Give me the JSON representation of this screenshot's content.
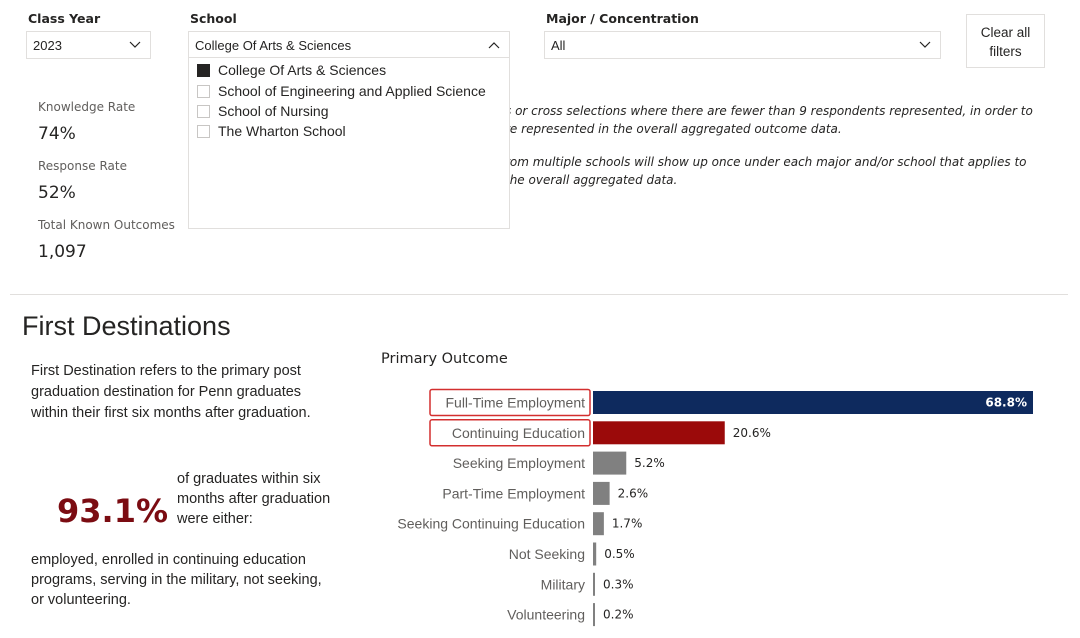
{
  "filters": {
    "class_year": {
      "label": "Class Year",
      "value": "2023"
    },
    "school": {
      "label": "School",
      "value": "College Of Arts & Sciences",
      "options": [
        {
          "label": "College Of Arts & Sciences",
          "checked": true
        },
        {
          "label": "School of Engineering and Applied Science",
          "checked": false
        },
        {
          "label": "School of Nursing",
          "checked": false
        },
        {
          "label": "The Wharton School",
          "checked": false
        }
      ]
    },
    "major": {
      "label": "Major / Concentration",
      "value": "All"
    },
    "clear_all": {
      "line1": "Clear all",
      "line2": "filters"
    }
  },
  "kpis": [
    {
      "label": "Knowledge Rate",
      "value": "74%"
    },
    {
      "label": "Response Rate",
      "value": "52%"
    },
    {
      "label": "Total Known Outcomes",
      "value": "1,097"
    }
  ],
  "notes": {
    "line1": "s or cross selections where there are fewer than 9 respondents represented, in order to",
    "line2": "re represented in the overall aggregated outcome data.",
    "line3": "rom multiple schools will show up once under each major and/or school that applies to",
    "line4": "the overall aggregated data."
  },
  "section": {
    "title": "First Destinations",
    "description_lines": [
      "First Destination refers to the primary post",
      "graduation destination for Penn graduates",
      "within their first six months after graduation."
    ],
    "pct": "93.1%",
    "pct_text_lines": [
      "of graduates within six",
      "months after graduation",
      "were either:"
    ],
    "outcome_lines": [
      "employed, enrolled in continuing education",
      "programs, serving in the military, not seeking,",
      "or volunteering."
    ]
  },
  "chart_data": {
    "type": "bar",
    "orientation": "horizontal",
    "title": "Primary Outcome",
    "categories": [
      "Full-Time Employment",
      "Continuing Education",
      "Seeking Employment",
      "Part-Time Employment",
      "Seeking Continuing Education",
      "Not Seeking",
      "Military",
      "Volunteering"
    ],
    "values": [
      68.8,
      20.6,
      5.2,
      2.6,
      1.7,
      0.5,
      0.3,
      0.2
    ],
    "value_labels": [
      "68.8%",
      "20.6%",
      "5.2%",
      "2.6%",
      "1.7%",
      "0.5%",
      "0.3%",
      "0.2%"
    ],
    "highlighted": [
      "Full-Time Employment",
      "Continuing Education"
    ],
    "colors": [
      "#0e2a5e",
      "#9b0a0a",
      "#808080",
      "#808080",
      "#808080",
      "#808080",
      "#808080",
      "#808080"
    ],
    "highlight_box_color": "#d32f2f",
    "xlim": [
      0,
      68.8
    ]
  }
}
